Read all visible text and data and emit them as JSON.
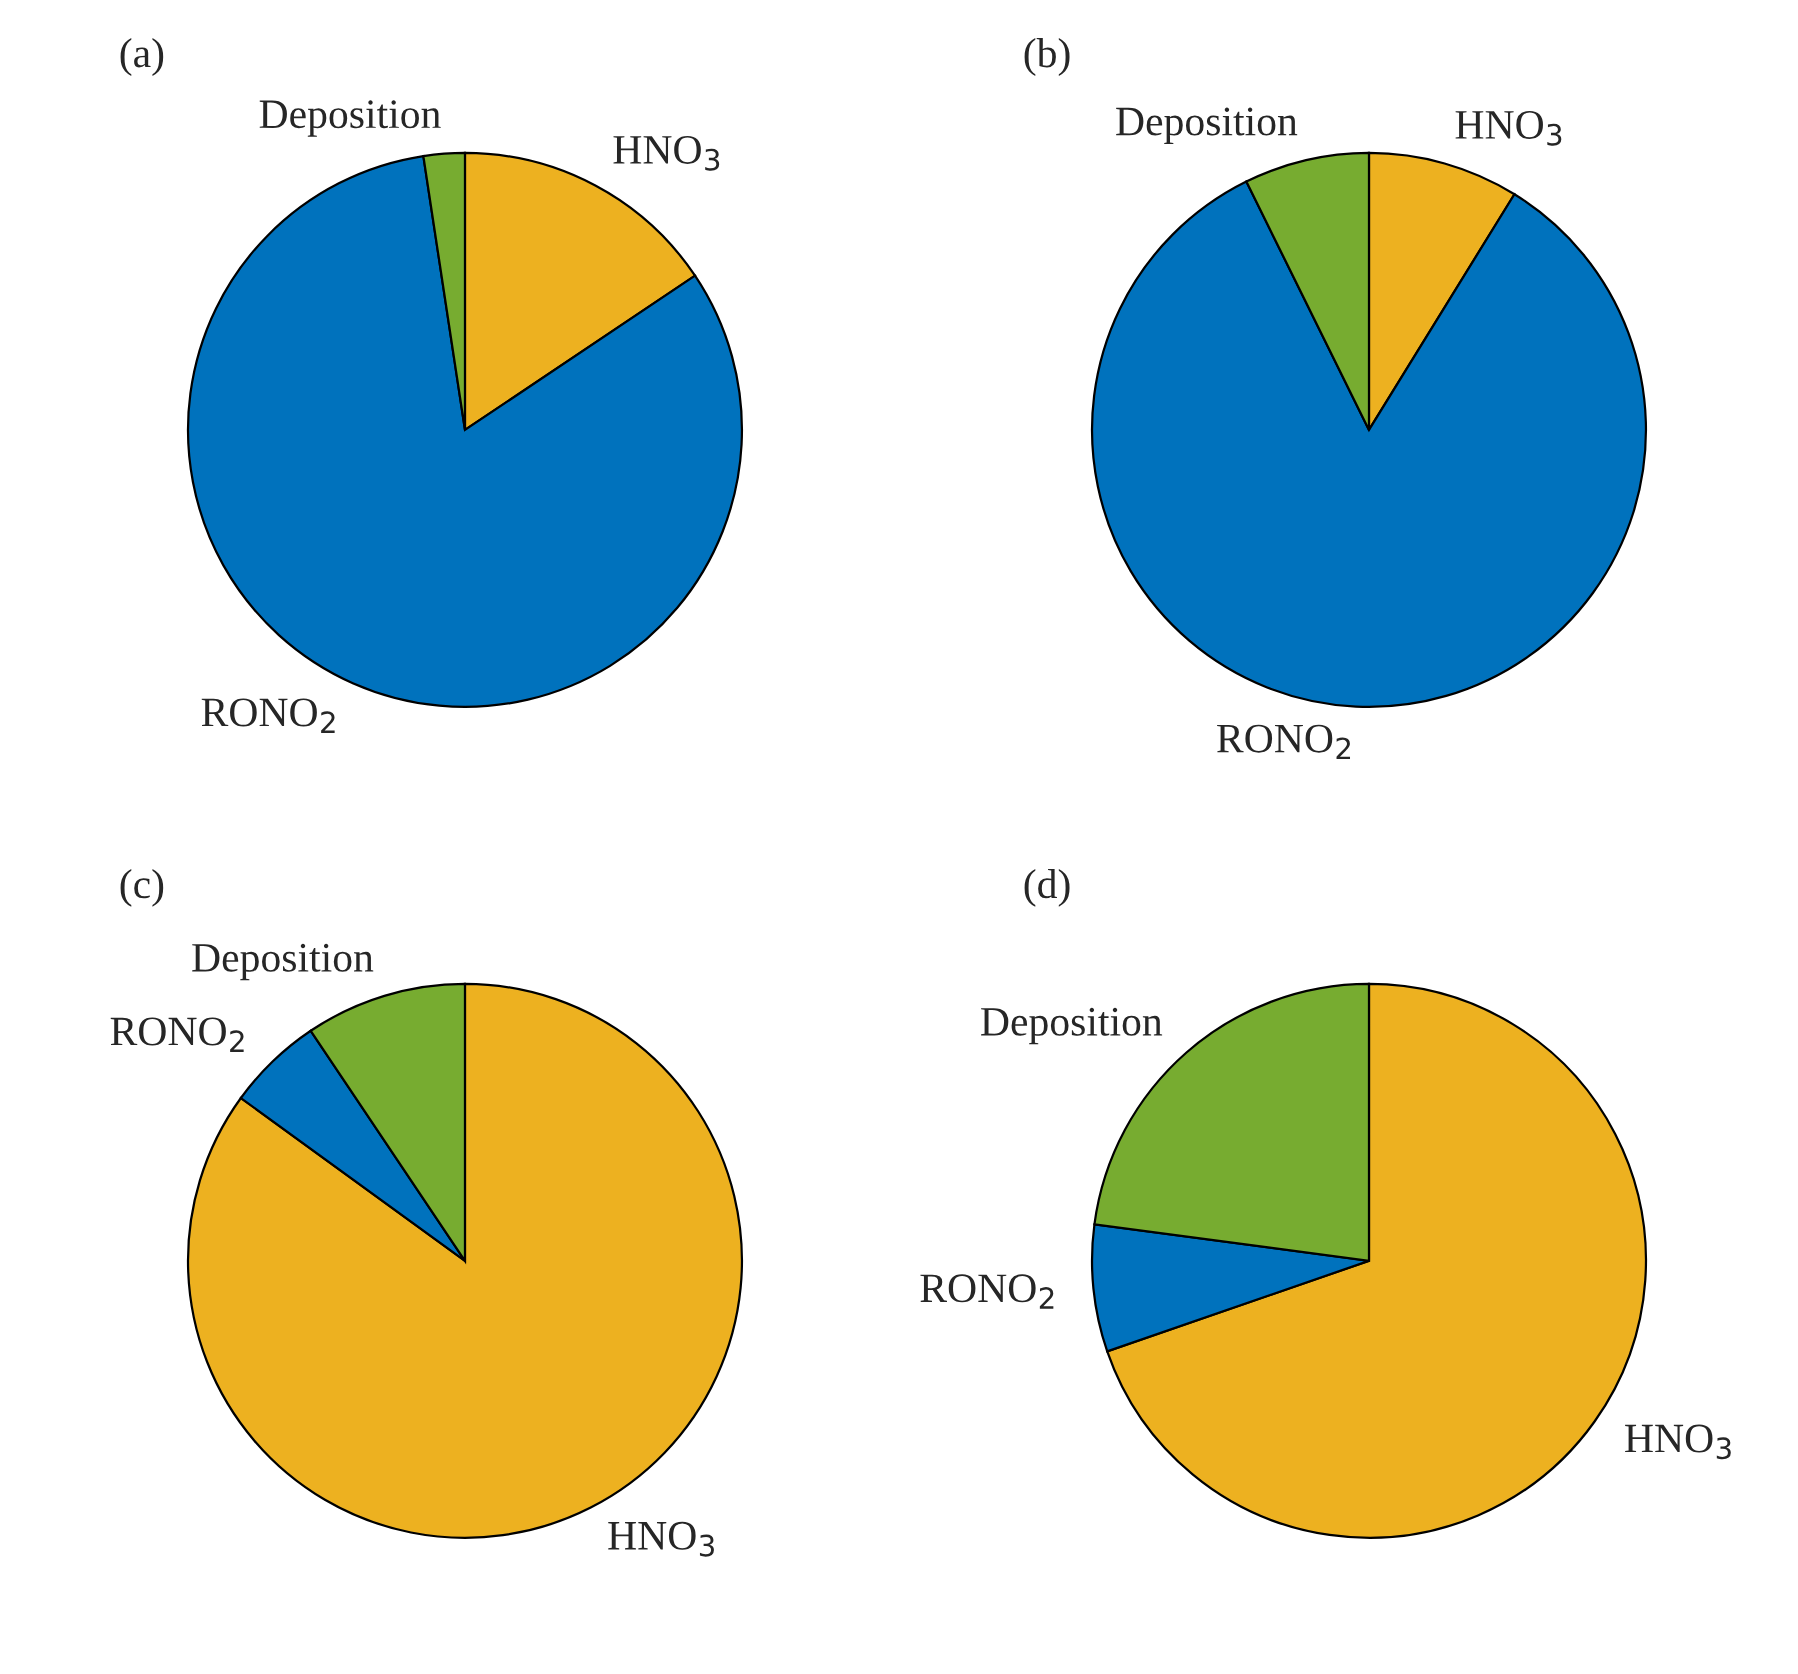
{
  "chart_data": [
    {
      "type": "pie",
      "title": "(a)",
      "categories": [
        "HNO$_{3}$",
        "RONO$_{2}$",
        "Deposition"
      ],
      "values": [
        15.6,
        82.0,
        2.4
      ],
      "colors": [
        "#edb120",
        "#0072bd",
        "#77ac30"
      ]
    },
    {
      "type": "pie",
      "title": "(b)",
      "categories": [
        "HNO$_{3}$",
        "RONO$_{2}$",
        "Deposition"
      ],
      "values": [
        8.8,
        83.9,
        7.3
      ],
      "colors": [
        "#edb120",
        "#0072bd",
        "#77ac30"
      ]
    },
    {
      "type": "pie",
      "title": "(c)",
      "categories": [
        "HNO$_{3}$",
        "RONO$_{2}$",
        "Deposition"
      ],
      "values": [
        85.0,
        5.6,
        9.4
      ],
      "colors": [
        "#edb120",
        "#0072bd",
        "#77ac30"
      ]
    },
    {
      "type": "pie",
      "title": "(d)",
      "categories": [
        "HNO$_{3}$",
        "RONO$_{2}$",
        "Deposition"
      ],
      "values": [
        69.7,
        7.4,
        22.9
      ],
      "colors": [
        "#edb120",
        "#0072bd",
        "#77ac30"
      ]
    }
  ]
}
